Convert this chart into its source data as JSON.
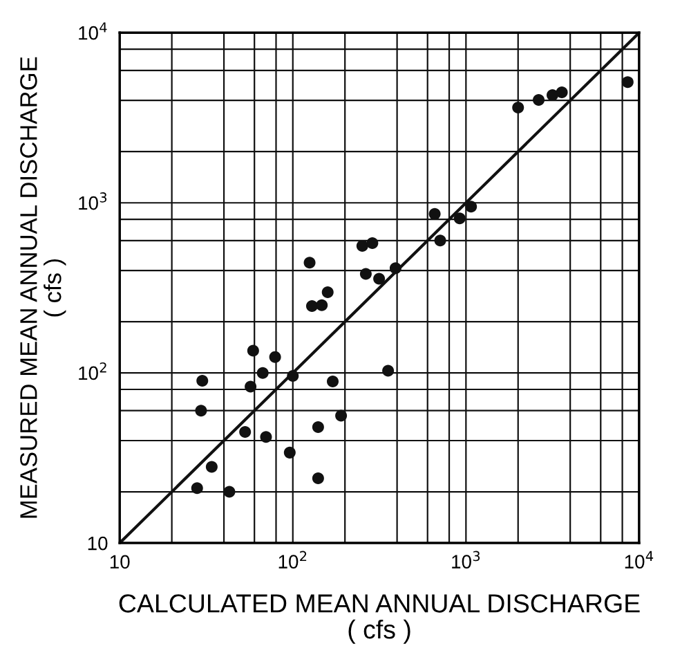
{
  "chart_data": {
    "type": "scatter",
    "xlabel": "CALCULATED MEAN ANNUAL DISCHARGE\n( cfs )",
    "ylabel": "MEASURED MEAN ANNUAL DISCHARGE\n( cfs )",
    "log": "xy",
    "grid": true,
    "marker": "circle",
    "xlim": [
      10,
      10000
    ],
    "ylim": [
      10,
      10000
    ],
    "xticks": [
      {
        "value": 10,
        "label": "10"
      },
      {
        "value": 20,
        "label": null
      },
      {
        "value": 40,
        "label": null
      },
      {
        "value": 60,
        "label": null
      },
      {
        "value": 80,
        "label": null
      },
      {
        "value": 100,
        "label": "10$^{2}$"
      },
      {
        "value": 200,
        "label": null
      },
      {
        "value": 400,
        "label": null
      },
      {
        "value": 600,
        "label": null
      },
      {
        "value": 800,
        "label": null
      },
      {
        "value": 1000,
        "label": "10$^{3}$"
      },
      {
        "value": 2000,
        "label": null
      },
      {
        "value": 4000,
        "label": null
      },
      {
        "value": 6000,
        "label": null
      },
      {
        "value": 8000,
        "label": null
      },
      {
        "value": 10000,
        "label": "10$^{4}$"
      }
    ],
    "yticks": [
      {
        "value": 10,
        "label": "10"
      },
      {
        "value": 20,
        "label": null
      },
      {
        "value": 40,
        "label": null
      },
      {
        "value": 60,
        "label": null
      },
      {
        "value": 80,
        "label": null
      },
      {
        "value": 100,
        "label": "10$^{2}$"
      },
      {
        "value": 200,
        "label": null
      },
      {
        "value": 400,
        "label": null
      },
      {
        "value": 600,
        "label": null
      },
      {
        "value": 800,
        "label": null
      },
      {
        "value": 1000,
        "label": "10$^{3}$"
      },
      {
        "value": 2000,
        "label": null
      },
      {
        "value": 4000,
        "label": null
      },
      {
        "value": 6000,
        "label": null
      },
      {
        "value": 8000,
        "label": null
      },
      {
        "value": 10000,
        "label": "10$^{4}$"
      }
    ],
    "series": [
      {
        "color": "#111111",
        "x": [
          30,
          29.5,
          34,
          28,
          43,
          59,
          79,
          67,
          57,
          100,
          53,
          70,
          96,
          140,
          140,
          170,
          190,
          355,
          125,
          129,
          147,
          159,
          252,
          288,
          264,
          315,
          392,
          660,
          920,
          1070,
          710,
          2000,
          2630,
          3160,
          3580,
          8590
        ],
        "values": [
          90,
          60,
          28,
          21,
          20,
          135,
          124,
          100,
          83,
          96,
          45,
          42,
          34,
          24,
          48,
          89,
          56,
          103,
          445,
          247,
          250,
          298,
          558,
          580,
          382,
          358,
          413,
          860,
          810,
          950,
          600,
          3630,
          4030,
          4300,
          4460,
          5130
        ]
      },
      {
        "type": "line",
        "color": "#111111",
        "marker": "none",
        "x": [
          10,
          10000
        ],
        "values": [
          10,
          10000
        ]
      }
    ]
  }
}
